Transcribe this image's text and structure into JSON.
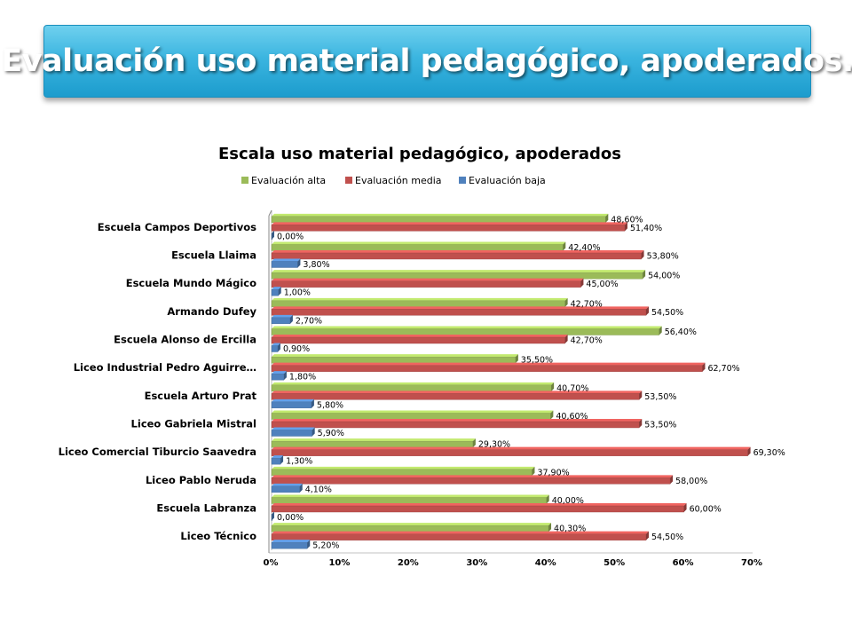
{
  "slide": {
    "title": "Evaluación uso material pedagógico, apoderados."
  },
  "colors": {
    "alta": "#9bbb59",
    "media": "#c0504d",
    "baja": "#4f81bd"
  },
  "chart_data": {
    "type": "bar",
    "orientation": "horizontal",
    "title": "Escala uso material pedagógico, apoderados",
    "categories": [
      "Escuela Campos Deportivos",
      "Escuela Llaima",
      "Escuela Mundo Mágico",
      "Armando Dufey",
      "Escuela Alonso de Ercilla",
      "Liceo Industrial Pedro Aguirre…",
      "Escuela Arturo Prat",
      "Liceo Gabriela Mistral",
      "Liceo Comercial Tiburcio Saavedra",
      "Liceo Pablo Neruda",
      "Escuela Labranza",
      "Liceo Técnico"
    ],
    "series": [
      {
        "name": "Evaluación alta",
        "color": "#9bbb59",
        "values": [
          48.6,
          42.4,
          54.0,
          42.7,
          56.4,
          35.5,
          40.7,
          40.6,
          29.3,
          37.9,
          40.0,
          40.3
        ],
        "labels": [
          "48,60%",
          "42,40%",
          "54,00%",
          "42,70%",
          "56,40%",
          "35,50%",
          "40,70%",
          "40,60%",
          "29,30%",
          "37,90%",
          "40,00%",
          "40,30%"
        ]
      },
      {
        "name": "Evaluación media",
        "color": "#c0504d",
        "values": [
          51.4,
          53.8,
          45.0,
          54.5,
          42.7,
          62.7,
          53.5,
          53.5,
          69.3,
          58.0,
          60.0,
          54.5
        ],
        "labels": [
          "51,40%",
          "53,80%",
          "45,00%",
          "54,50%",
          "42,70%",
          "62,70%",
          "53,50%",
          "53,50%",
          "69,30%",
          "58,00%",
          "60,00%",
          "54,50%"
        ]
      },
      {
        "name": "Evaluación baja",
        "color": "#4f81bd",
        "values": [
          0.0,
          3.8,
          1.0,
          2.7,
          0.9,
          1.8,
          5.8,
          5.9,
          1.3,
          4.1,
          0.0,
          5.2
        ],
        "labels": [
          "0,00%",
          "3,80%",
          "1,00%",
          "2,70%",
          "0,90%",
          "1,80%",
          "5,80%",
          "5,90%",
          "1,30%",
          "4,10%",
          "0,00%",
          "5,20%"
        ]
      }
    ],
    "xlim": [
      0,
      70
    ],
    "xticks": [
      0,
      10,
      20,
      30,
      40,
      50,
      60,
      70
    ],
    "xtick_labels": [
      "0%",
      "10%",
      "20%",
      "30%",
      "40%",
      "50%",
      "60%",
      "70%"
    ],
    "legend_position": "top",
    "grid": false
  }
}
